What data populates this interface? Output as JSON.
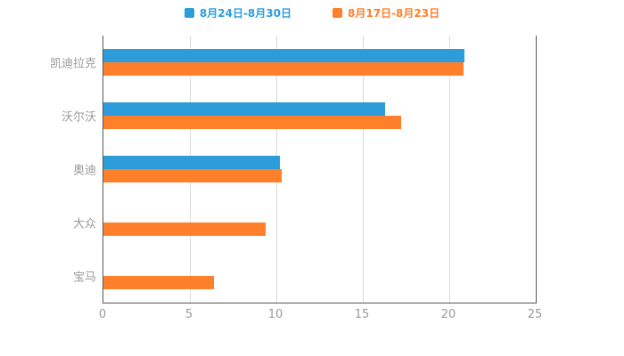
{
  "chart_data": {
    "type": "bar",
    "orientation": "horizontal",
    "title": "",
    "xlabel": "",
    "ylabel": "",
    "categories": [
      "凯迪拉克",
      "沃尔沃",
      "奥迪",
      "大众",
      "宝马"
    ],
    "series": [
      {
        "name": "8月24日-8月30日",
        "color": "#2D9CDB",
        "values": [
          20.9,
          16.3,
          10.2,
          0,
          0
        ]
      },
      {
        "name": "8月17日-8月23日",
        "color": "#FF7F2B",
        "values": [
          20.8,
          17.2,
          10.3,
          9.4,
          6.4
        ]
      }
    ],
    "xlim": [
      0,
      25
    ],
    "xticks": [
      0,
      5,
      10,
      15,
      20,
      25
    ],
    "legend_position": "top",
    "grid": true
  }
}
